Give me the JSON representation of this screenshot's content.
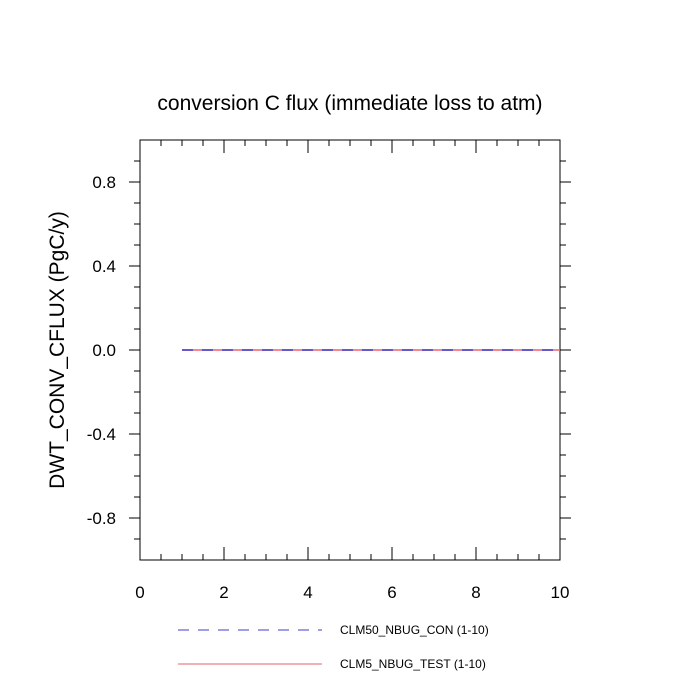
{
  "chart_data": {
    "type": "line",
    "title": "conversion C flux (immediate loss to atm)",
    "xlabel": "",
    "ylabel": "DWT_CONV_CFLUX  (PgC/y)",
    "xlim": [
      0,
      10
    ],
    "ylim": [
      -1,
      1
    ],
    "x_ticks": [
      0,
      2,
      4,
      6,
      8,
      10
    ],
    "x_tick_labels": [
      "0",
      "2",
      "4",
      "6",
      "8",
      "10"
    ],
    "y_ticks": [
      -0.8,
      -0.4,
      0.0,
      0.4,
      0.8
    ],
    "y_tick_labels": [
      "-0.8",
      "-0.4",
      "0.0",
      "0.4",
      "0.8"
    ],
    "grid": false,
    "legend_position": "bottom",
    "series": [
      {
        "name": "CLM50_NBUG_CON (1-10)",
        "color": "#3b3bd6",
        "style": "dashed",
        "x": [
          1,
          2,
          3,
          4,
          5,
          6,
          7,
          8,
          9,
          10
        ],
        "y": [
          0,
          0,
          0,
          0,
          0,
          0,
          0,
          0,
          0,
          0
        ]
      },
      {
        "name": "CLM5_NBUG_TEST (1-10)",
        "color": "#e8636b",
        "style": "solid",
        "x": [
          1,
          2,
          3,
          4,
          5,
          6,
          7,
          8,
          9,
          10
        ],
        "y": [
          0,
          0,
          0,
          0,
          0,
          0,
          0,
          0,
          0,
          0
        ]
      }
    ]
  }
}
